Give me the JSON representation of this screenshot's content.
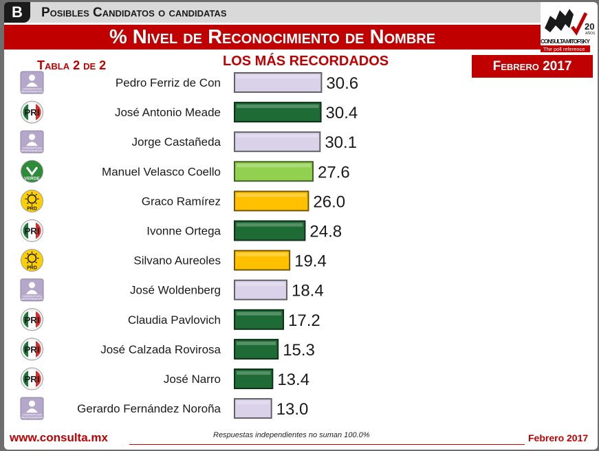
{
  "header": {
    "section_letter": "B",
    "section_title": "Posibles Candidatos o candidatas",
    "main_title": "% Nivel de Reconocimiento de Nombre",
    "table_label": "Tabla 2 de 2",
    "subtitle": "LOS MÁS RECORDADOS",
    "date": "Febrero 2017"
  },
  "logo": {
    "name": "CONSULTA MITOFSKY",
    "tagline": "The poll reference",
    "anniversary": "20",
    "anniversary_unit": "AÑOS"
  },
  "badges": {
    "independiente": {
      "line1": "CANDIDATURA",
      "line2": "INDEPENDIENTE"
    },
    "pri": {
      "text": "PRI"
    },
    "verde": {
      "text": "VERDE"
    },
    "prd": {
      "text": "PRD"
    }
  },
  "colors": {
    "accent_red": "#c00000",
    "independiente": "#d9d2e9",
    "pri": "#1e6b35",
    "verde": "#92d050",
    "prd": "#ffc000"
  },
  "chart_data": {
    "type": "bar",
    "orientation": "horizontal",
    "title": "% Nivel de Reconocimiento de Nombre",
    "subtitle": "LOS MÁS RECORDADOS",
    "categories": [
      "Pedro Ferriz de Con",
      "José Antonio Meade",
      "Jorge Castañeda",
      "Manuel Velasco Coello",
      "Graco Ramírez",
      "Ivonne Ortega",
      "Silvano Aureoles",
      "José Woldenberg",
      "Claudia Pavlovich",
      "José Calzada Rovirosa",
      "José Narro",
      "Gerardo Fernández Noroña"
    ],
    "values": [
      30.6,
      30.4,
      30.1,
      27.6,
      26.0,
      24.8,
      19.4,
      18.4,
      17.2,
      15.3,
      13.4,
      13.0
    ],
    "value_labels": [
      "30.6",
      "30.4",
      "30.1",
      "27.6",
      "26.0",
      "24.8",
      "19.4",
      "18.4",
      "17.2",
      "15.3",
      "13.4",
      "13.0"
    ],
    "party": [
      "independiente",
      "pri",
      "independiente",
      "verde",
      "prd",
      "pri",
      "prd",
      "independiente",
      "pri",
      "pri",
      "pri",
      "independiente"
    ],
    "xlim": [
      0,
      35
    ],
    "grid": false,
    "legend": "none"
  },
  "footer": {
    "url": "www.consulta.mx",
    "note": "Respuestas independientes no suman 100.0%",
    "date": "Febrero 2017"
  }
}
